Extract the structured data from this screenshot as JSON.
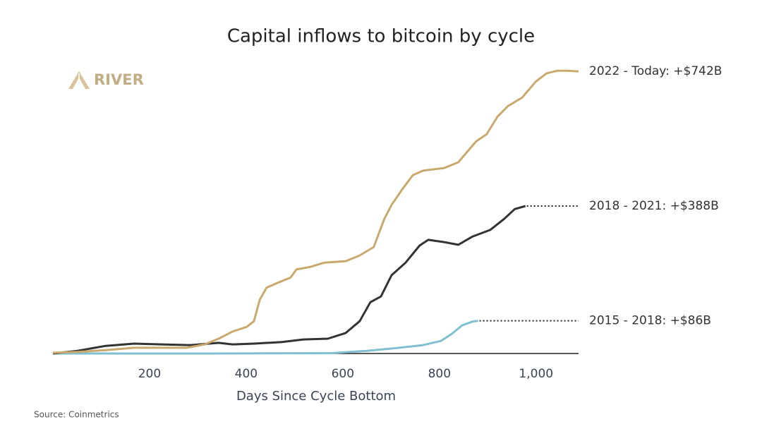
{
  "chart_data": {
    "type": "line",
    "title": "Capital inflows to bitcoin by cycle",
    "logo": "RIVER",
    "xlabel": "Days Since Cycle Bottom",
    "source": "Source: Coinmetrics",
    "xlim": [
      0,
      1088
    ],
    "ylim": [
      0,
      800
    ],
    "xticks": [
      200,
      400,
      600,
      800,
      {
        "value": 1000,
        "label": "1,000"
      }
    ],
    "series": [
      {
        "name": "2022 - Today: +$742B",
        "color": "#c9a96e",
        "leader": false,
        "x": [
          0,
          51,
          109,
          168,
          226,
          277,
          314,
          343,
          372,
          401,
          416,
          428,
          442,
          467,
          492,
          504,
          533,
          562,
          606,
          635,
          664,
          686,
          701,
          723,
          745,
          766,
          810,
          839,
          876,
          898,
          920,
          942,
          971,
          1000,
          1022,
          1044,
          1066,
          1088
        ],
        "values": [
          2,
          4,
          9,
          15,
          15,
          15,
          24,
          39,
          58,
          70,
          85,
          141,
          173,
          187,
          200,
          221,
          228,
          239,
          243,
          258,
          280,
          354,
          391,
          432,
          469,
          481,
          488,
          503,
          558,
          577,
          623,
          651,
          673,
          716,
          737,
          744,
          744,
          742
        ]
      },
      {
        "name": "2018 - 2021: +$388B",
        "color": "#333333",
        "leader": true,
        "x": [
          0,
          51,
          109,
          168,
          226,
          285,
          343,
          372,
          416,
          474,
          518,
          569,
          606,
          635,
          657,
          679,
          701,
          730,
          759,
          777,
          810,
          839,
          869,
          905,
          934,
          956,
          978
        ],
        "values": [
          0,
          7,
          20,
          26,
          24,
          22,
          28,
          24,
          26,
          30,
          37,
          39,
          54,
          85,
          135,
          150,
          206,
          239,
          284,
          299,
          293,
          286,
          308,
          325,
          354,
          380,
          388
        ]
      },
      {
        "name": "2015 - 2018: +$86B",
        "color": "#7fbfcf",
        "leader": true,
        "x": [
          0,
          328,
          577,
          650,
          708,
          766,
          803,
          825,
          847,
          869,
          880
        ],
        "values": [
          0,
          0,
          1,
          7,
          14,
          22,
          33,
          51,
          74,
          84,
          86
        ]
      }
    ]
  }
}
